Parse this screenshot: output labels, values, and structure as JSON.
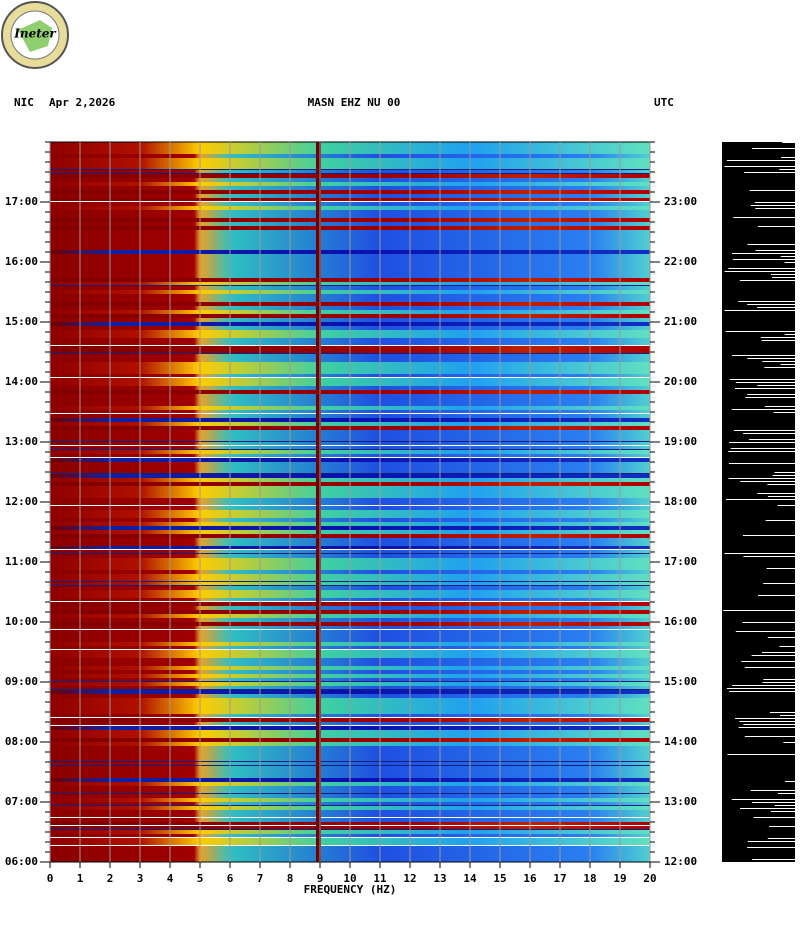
{
  "logo_text": "Ineter",
  "chart_data": {
    "type": "spectrogram",
    "network": "NIC",
    "date": "Apr 2,2026",
    "title": "MASN EHZ NU 00",
    "timezone": "UTC",
    "xlabel": "FREQUENCY (HZ)",
    "xlim": [
      0,
      20
    ],
    "xticks": [
      0,
      1,
      2,
      3,
      4,
      5,
      6,
      7,
      8,
      9,
      10,
      11,
      12,
      13,
      14,
      15,
      16,
      17,
      18,
      19,
      20
    ],
    "ylim": [
      6,
      18
    ],
    "yticks": [
      {
        "value": 6,
        "label": "06:00"
      },
      {
        "value": 7,
        "label": "07:00"
      },
      {
        "value": 8,
        "label": "08:00"
      },
      {
        "value": 9,
        "label": "09:00"
      },
      {
        "value": 10,
        "label": "10:00"
      },
      {
        "value": 11,
        "label": "11:00"
      },
      {
        "value": 12,
        "label": "12:00"
      },
      {
        "value": 13,
        "label": "13:00"
      },
      {
        "value": 14,
        "label": "14:00"
      },
      {
        "value": 15,
        "label": "15:00"
      },
      {
        "value": 16,
        "label": "16:00"
      },
      {
        "value": 17,
        "label": "17:00"
      }
    ],
    "y2lim": [
      12,
      24
    ],
    "y2ticks": [
      {
        "value": 12,
        "label": "12:00"
      },
      {
        "value": 13,
        "label": "13:00"
      },
      {
        "value": 14,
        "label": "14:00"
      },
      {
        "value": 15,
        "label": "15:00"
      },
      {
        "value": 16,
        "label": "16:00"
      },
      {
        "value": 17,
        "label": "17:00"
      },
      {
        "value": 18,
        "label": "18:00"
      },
      {
        "value": 19,
        "label": "19:00"
      },
      {
        "value": 20,
        "label": "20:00"
      },
      {
        "value": 21,
        "label": "21:00"
      },
      {
        "value": 22,
        "label": "22:00"
      },
      {
        "value": 23,
        "label": "23:00"
      }
    ]
  }
}
